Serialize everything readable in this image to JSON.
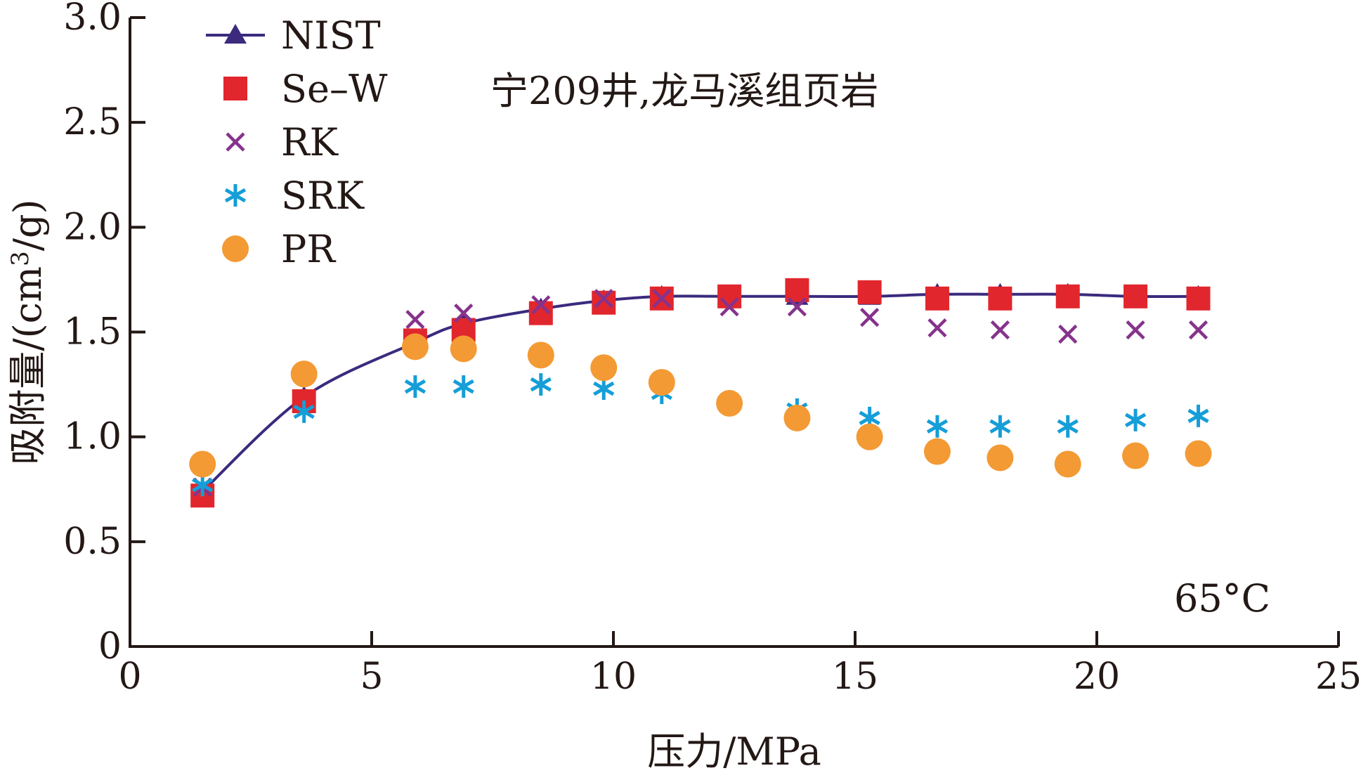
{
  "chart_data": {
    "type": "scatter",
    "title": "",
    "annotations": [
      "宁209井,龙马溪组页岩",
      "65°C"
    ],
    "xlabel": "压力/MPa",
    "ylabel_parts": [
      "吸附量/(cm",
      "3",
      "/g)"
    ],
    "xlim": [
      0,
      25
    ],
    "ylim": [
      0,
      3.0
    ],
    "xticks": [
      0,
      5,
      10,
      15,
      20,
      25
    ],
    "xtick_labels": [
      "0",
      "5",
      "10",
      "15",
      "20",
      "25"
    ],
    "yticks": [
      0,
      0.5,
      1.0,
      1.5,
      2.0,
      2.5,
      3.0
    ],
    "ytick_labels": [
      "0",
      "0.5",
      "1.0",
      "1.5",
      "2.0",
      "2.5",
      "3.0"
    ],
    "grid": false,
    "legend_position": "top-left",
    "x": [
      1.5,
      3.6,
      5.9,
      6.9,
      8.5,
      9.8,
      11.0,
      12.4,
      13.8,
      15.3,
      16.7,
      18.0,
      19.4,
      20.8,
      22.1
    ],
    "series": [
      {
        "name": "NIST",
        "marker": "triangle-line",
        "color": "#3b2a7e",
        "values": [
          0.74,
          1.19,
          1.45,
          1.54,
          1.61,
          1.65,
          1.67,
          1.67,
          1.67,
          1.67,
          1.68,
          1.68,
          1.68,
          1.67,
          1.67
        ]
      },
      {
        "name": "Se–W",
        "marker": "square",
        "color": "#e1262d",
        "values": [
          0.72,
          1.17,
          1.46,
          1.51,
          1.59,
          1.64,
          1.66,
          1.67,
          1.7,
          1.69,
          1.66,
          1.66,
          1.67,
          1.67,
          1.66
        ]
      },
      {
        "name": "RK",
        "marker": "cross",
        "color": "#86338c",
        "values": [
          0.76,
          1.3,
          1.56,
          1.59,
          1.63,
          1.66,
          1.66,
          1.62,
          1.62,
          1.57,
          1.52,
          1.51,
          1.49,
          1.51,
          1.51
        ]
      },
      {
        "name": "SRK",
        "marker": "asterisk",
        "color": "#159ed7",
        "values": [
          0.77,
          1.12,
          1.24,
          1.24,
          1.25,
          1.23,
          1.21,
          1.16,
          1.13,
          1.09,
          1.05,
          1.05,
          1.05,
          1.08,
          1.1
        ]
      },
      {
        "name": "PR",
        "marker": "circle",
        "color": "#f39a34",
        "values": [
          0.87,
          1.3,
          1.43,
          1.42,
          1.39,
          1.33,
          1.26,
          1.16,
          1.09,
          1.0,
          0.93,
          0.9,
          0.87,
          0.91,
          0.92
        ]
      }
    ]
  }
}
